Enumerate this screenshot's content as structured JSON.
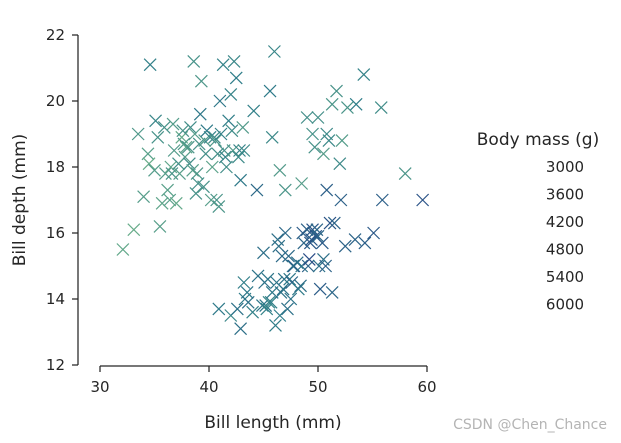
{
  "chart_data": {
    "type": "scatter",
    "title": "",
    "xlabel": "Bill length (mm)",
    "ylabel": "Bill depth (mm)",
    "xlim": [
      28,
      60
    ],
    "ylim": [
      12,
      22
    ],
    "xticks": [
      30,
      40,
      50,
      60
    ],
    "yticks": [
      12,
      14,
      16,
      18,
      20,
      22
    ],
    "grid": false,
    "marker": "x",
    "colormap": [
      "#6fb28a",
      "#2e7d89",
      "#2a4c87"
    ],
    "legend": {
      "title": "Body mass (g)",
      "placement": "right",
      "entries": [
        "3000",
        "3600",
        "4200",
        "4800",
        "5400",
        "6000"
      ]
    },
    "points": [
      {
        "x": 32.1,
        "y": 15.5,
        "mass": 3050
      },
      {
        "x": 33.1,
        "y": 16.1,
        "mass": 2900
      },
      {
        "x": 33.5,
        "y": 19.0,
        "mass": 3600
      },
      {
        "x": 34.0,
        "y": 17.1,
        "mass": 3400
      },
      {
        "x": 34.4,
        "y": 18.4,
        "mass": 3325
      },
      {
        "x": 34.5,
        "y": 18.1,
        "mass": 2900
      },
      {
        "x": 34.6,
        "y": 21.1,
        "mass": 4400
      },
      {
        "x": 35.0,
        "y": 17.9,
        "mass": 3450
      },
      {
        "x": 35.1,
        "y": 19.4,
        "mass": 4200
      },
      {
        "x": 35.3,
        "y": 18.9,
        "mass": 3800
      },
      {
        "x": 35.5,
        "y": 16.2,
        "mass": 3350
      },
      {
        "x": 35.7,
        "y": 16.9,
        "mass": 3150
      },
      {
        "x": 35.9,
        "y": 19.2,
        "mass": 3800
      },
      {
        "x": 36.0,
        "y": 17.8,
        "mass": 3450
      },
      {
        "x": 36.2,
        "y": 17.3,
        "mass": 3300
      },
      {
        "x": 36.4,
        "y": 17.0,
        "mass": 3325
      },
      {
        "x": 36.5,
        "y": 18.0,
        "mass": 3150
      },
      {
        "x": 36.6,
        "y": 17.8,
        "mass": 3700
      },
      {
        "x": 36.7,
        "y": 19.3,
        "mass": 3450
      },
      {
        "x": 36.8,
        "y": 18.5,
        "mass": 3500
      },
      {
        "x": 37.0,
        "y": 16.9,
        "mass": 3000
      },
      {
        "x": 37.2,
        "y": 18.1,
        "mass": 3900
      },
      {
        "x": 37.3,
        "y": 17.8,
        "mass": 3350
      },
      {
        "x": 37.5,
        "y": 18.9,
        "mass": 2975
      },
      {
        "x": 37.6,
        "y": 19.1,
        "mass": 3750
      },
      {
        "x": 37.7,
        "y": 18.7,
        "mass": 3600
      },
      {
        "x": 37.8,
        "y": 18.3,
        "mass": 3400
      },
      {
        "x": 37.9,
        "y": 18.6,
        "mass": 3200
      },
      {
        "x": 38.1,
        "y": 18.6,
        "mass": 3700
      },
      {
        "x": 38.2,
        "y": 18.1,
        "mass": 3950
      },
      {
        "x": 38.3,
        "y": 19.2,
        "mass": 3950
      },
      {
        "x": 38.5,
        "y": 17.9,
        "mass": 3325
      },
      {
        "x": 38.6,
        "y": 21.2,
        "mass": 3800
      },
      {
        "x": 38.7,
        "y": 19.0,
        "mass": 3450
      },
      {
        "x": 38.8,
        "y": 17.2,
        "mass": 3800
      },
      {
        "x": 38.9,
        "y": 17.8,
        "mass": 3625
      },
      {
        "x": 39.0,
        "y": 17.5,
        "mass": 3900
      },
      {
        "x": 39.1,
        "y": 18.7,
        "mass": 3750
      },
      {
        "x": 39.2,
        "y": 19.6,
        "mass": 4675
      },
      {
        "x": 39.3,
        "y": 20.6,
        "mass": 3650
      },
      {
        "x": 39.5,
        "y": 17.4,
        "mass": 3800
      },
      {
        "x": 39.6,
        "y": 18.8,
        "mass": 3500
      },
      {
        "x": 39.7,
        "y": 18.4,
        "mass": 3900
      },
      {
        "x": 39.8,
        "y": 19.1,
        "mass": 4650
      },
      {
        "x": 40.1,
        "y": 18.9,
        "mass": 4300
      },
      {
        "x": 40.2,
        "y": 17.0,
        "mass": 3400
      },
      {
        "x": 40.3,
        "y": 18.0,
        "mass": 3250
      },
      {
        "x": 40.5,
        "y": 18.9,
        "mass": 4000
      },
      {
        "x": 40.6,
        "y": 18.8,
        "mass": 3550
      },
      {
        "x": 40.7,
        "y": 17.0,
        "mass": 3725
      },
      {
        "x": 40.8,
        "y": 18.4,
        "mass": 3900
      },
      {
        "x": 40.9,
        "y": 16.8,
        "mass": 3700
      },
      {
        "x": 41.0,
        "y": 20.0,
        "mass": 4725
      },
      {
        "x": 41.1,
        "y": 19.0,
        "mass": 4325
      },
      {
        "x": 41.3,
        "y": 21.1,
        "mass": 4300
      },
      {
        "x": 41.4,
        "y": 18.5,
        "mass": 3875
      },
      {
        "x": 41.5,
        "y": 18.3,
        "mass": 4300
      },
      {
        "x": 41.6,
        "y": 18.0,
        "mass": 3950
      },
      {
        "x": 41.8,
        "y": 19.4,
        "mass": 4450
      },
      {
        "x": 42.0,
        "y": 20.2,
        "mass": 4250
      },
      {
        "x": 42.1,
        "y": 19.1,
        "mass": 4000
      },
      {
        "x": 42.2,
        "y": 18.5,
        "mass": 3550
      },
      {
        "x": 42.3,
        "y": 21.2,
        "mass": 4150
      },
      {
        "x": 42.5,
        "y": 20.7,
        "mass": 4500
      },
      {
        "x": 42.7,
        "y": 18.3,
        "mass": 4075
      },
      {
        "x": 42.8,
        "y": 18.5,
        "mass": 4250
      },
      {
        "x": 42.9,
        "y": 17.6,
        "mass": 4700
      },
      {
        "x": 43.1,
        "y": 19.2,
        "mass": 3500
      },
      {
        "x": 43.2,
        "y": 18.5,
        "mass": 4100
      },
      {
        "x": 44.1,
        "y": 19.7,
        "mass": 4400
      },
      {
        "x": 45.6,
        "y": 20.3,
        "mass": 4600
      },
      {
        "x": 46.0,
        "y": 21.5,
        "mass": 4200
      },
      {
        "x": 45.8,
        "y": 18.9,
        "mass": 4100
      },
      {
        "x": 46.5,
        "y": 17.9,
        "mass": 3500
      },
      {
        "x": 47.0,
        "y": 17.3,
        "mass": 3700
      },
      {
        "x": 48.5,
        "y": 17.5,
        "mass": 3400
      },
      {
        "x": 49.0,
        "y": 19.5,
        "mass": 3950
      },
      {
        "x": 49.5,
        "y": 19.0,
        "mass": 3800
      },
      {
        "x": 49.7,
        "y": 18.6,
        "mass": 3775
      },
      {
        "x": 50.0,
        "y": 19.5,
        "mass": 3900
      },
      {
        "x": 50.5,
        "y": 18.4,
        "mass": 3400
      },
      {
        "x": 50.8,
        "y": 19.0,
        "mass": 4100
      },
      {
        "x": 51.0,
        "y": 18.8,
        "mass": 4100
      },
      {
        "x": 51.3,
        "y": 19.9,
        "mass": 3700
      },
      {
        "x": 51.7,
        "y": 20.3,
        "mass": 3775
      },
      {
        "x": 52.0,
        "y": 18.1,
        "mass": 4050
      },
      {
        "x": 52.2,
        "y": 18.8,
        "mass": 3450
      },
      {
        "x": 52.7,
        "y": 19.8,
        "mass": 3725
      },
      {
        "x": 53.5,
        "y": 19.9,
        "mass": 4500
      },
      {
        "x": 54.2,
        "y": 20.8,
        "mass": 4300
      },
      {
        "x": 55.8,
        "y": 19.8,
        "mass": 4000
      },
      {
        "x": 58.0,
        "y": 17.8,
        "mass": 3700
      },
      {
        "x": 40.9,
        "y": 13.7,
        "mass": 4650
      },
      {
        "x": 42.0,
        "y": 13.5,
        "mass": 4150
      },
      {
        "x": 42.6,
        "y": 13.7,
        "mass": 4950
      },
      {
        "x": 42.9,
        "y": 13.1,
        "mass": 5000
      },
      {
        "x": 43.2,
        "y": 14.5,
        "mass": 4450
      },
      {
        "x": 43.3,
        "y": 14.0,
        "mass": 4575
      },
      {
        "x": 43.5,
        "y": 14.2,
        "mass": 4700
      },
      {
        "x": 43.6,
        "y": 13.9,
        "mass": 4900
      },
      {
        "x": 44.0,
        "y": 13.6,
        "mass": 4350
      },
      {
        "x": 44.4,
        "y": 17.3,
        "mass": 5250
      },
      {
        "x": 44.5,
        "y": 14.7,
        "mass": 4850
      },
      {
        "x": 44.9,
        "y": 13.8,
        "mass": 4750
      },
      {
        "x": 45.0,
        "y": 15.4,
        "mass": 5050
      },
      {
        "x": 45.1,
        "y": 14.5,
        "mass": 5000
      },
      {
        "x": 45.2,
        "y": 13.8,
        "mass": 4750
      },
      {
        "x": 45.3,
        "y": 13.7,
        "mass": 4300
      },
      {
        "x": 45.4,
        "y": 14.6,
        "mass": 4800
      },
      {
        "x": 45.5,
        "y": 13.9,
        "mass": 4200
      },
      {
        "x": 45.7,
        "y": 13.9,
        "mass": 4400
      },
      {
        "x": 45.8,
        "y": 14.2,
        "mass": 4700
      },
      {
        "x": 46.1,
        "y": 13.2,
        "mass": 4500
      },
      {
        "x": 46.2,
        "y": 14.5,
        "mass": 4800
      },
      {
        "x": 46.3,
        "y": 15.8,
        "mass": 5050
      },
      {
        "x": 46.4,
        "y": 15.6,
        "mass": 5000
      },
      {
        "x": 46.5,
        "y": 13.5,
        "mass": 4550
      },
      {
        "x": 46.6,
        "y": 14.2,
        "mass": 4850
      },
      {
        "x": 46.7,
        "y": 15.3,
        "mass": 5200
      },
      {
        "x": 46.8,
        "y": 14.3,
        "mass": 4850
      },
      {
        "x": 46.9,
        "y": 14.6,
        "mass": 4875
      },
      {
        "x": 47.0,
        "y": 16.0,
        "mass": 5300
      },
      {
        "x": 47.2,
        "y": 13.7,
        "mass": 4925
      },
      {
        "x": 47.3,
        "y": 15.3,
        "mass": 5250
      },
      {
        "x": 47.4,
        "y": 14.6,
        "mass": 4725
      },
      {
        "x": 47.5,
        "y": 14.0,
        "mass": 4875
      },
      {
        "x": 47.6,
        "y": 14.5,
        "mass": 5400
      },
      {
        "x": 47.7,
        "y": 15.0,
        "mass": 4925
      },
      {
        "x": 47.8,
        "y": 15.0,
        "mass": 5650
      },
      {
        "x": 48.1,
        "y": 15.1,
        "mass": 5100
      },
      {
        "x": 48.2,
        "y": 14.3,
        "mass": 4600
      },
      {
        "x": 48.4,
        "y": 14.4,
        "mass": 5050
      },
      {
        "x": 48.5,
        "y": 15.0,
        "mass": 4850
      },
      {
        "x": 48.6,
        "y": 16.0,
        "mass": 5800
      },
      {
        "x": 48.7,
        "y": 15.7,
        "mass": 5350
      },
      {
        "x": 49.0,
        "y": 16.1,
        "mass": 5550
      },
      {
        "x": 49.1,
        "y": 15.0,
        "mass": 5500
      },
      {
        "x": 49.2,
        "y": 15.2,
        "mass": 6300
      },
      {
        "x": 49.3,
        "y": 15.7,
        "mass": 5850
      },
      {
        "x": 49.4,
        "y": 15.8,
        "mass": 5800
      },
      {
        "x": 49.5,
        "y": 16.1,
        "mass": 5950
      },
      {
        "x": 49.6,
        "y": 16.0,
        "mass": 5700
      },
      {
        "x": 49.8,
        "y": 15.9,
        "mass": 5950
      },
      {
        "x": 49.9,
        "y": 16.1,
        "mass": 5400
      },
      {
        "x": 50.0,
        "y": 15.9,
        "mass": 5350
      },
      {
        "x": 50.1,
        "y": 15.0,
        "mass": 5000
      },
      {
        "x": 50.2,
        "y": 14.3,
        "mass": 5700
      },
      {
        "x": 50.4,
        "y": 15.7,
        "mass": 5750
      },
      {
        "x": 50.5,
        "y": 15.2,
        "mass": 5000
      },
      {
        "x": 50.7,
        "y": 15.0,
        "mass": 5550
      },
      {
        "x": 50.8,
        "y": 17.3,
        "mass": 5600
      },
      {
        "x": 51.1,
        "y": 16.3,
        "mass": 6000
      },
      {
        "x": 51.3,
        "y": 14.2,
        "mass": 5300
      },
      {
        "x": 51.5,
        "y": 16.3,
        "mass": 5500
      },
      {
        "x": 52.1,
        "y": 17.0,
        "mass": 5550
      },
      {
        "x": 52.5,
        "y": 15.6,
        "mass": 5450
      },
      {
        "x": 53.4,
        "y": 15.8,
        "mass": 5450
      },
      {
        "x": 54.3,
        "y": 15.7,
        "mass": 5650
      },
      {
        "x": 55.1,
        "y": 16.0,
        "mass": 5850
      },
      {
        "x": 55.9,
        "y": 17.0,
        "mass": 5600
      },
      {
        "x": 59.6,
        "y": 17.0,
        "mass": 6050
      }
    ]
  },
  "watermark": "CSDN @Chen_Chance"
}
